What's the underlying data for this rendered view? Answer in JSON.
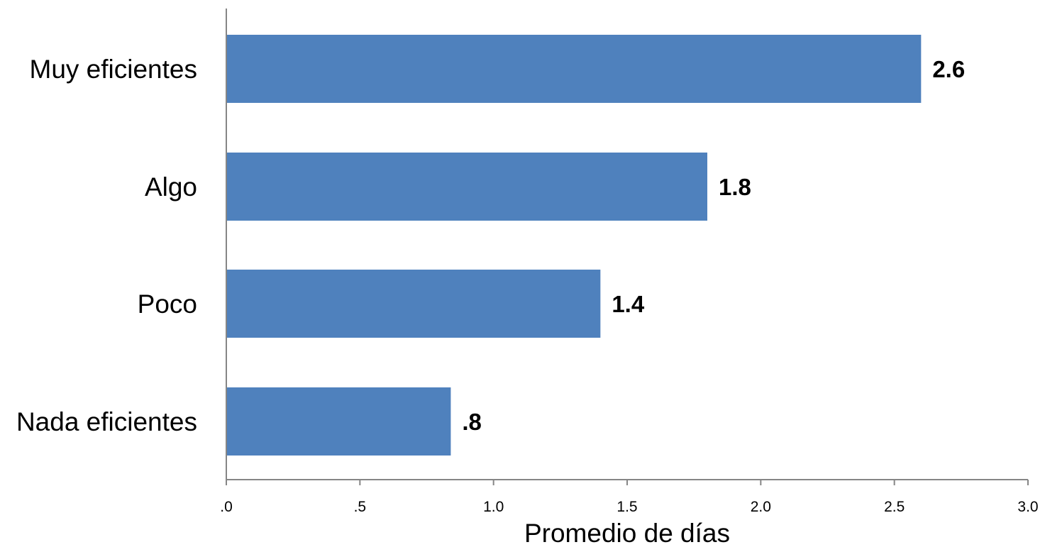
{
  "chart_data": {
    "type": "bar",
    "orientation": "horizontal",
    "title": "",
    "xlabel": "Promedio de días",
    "ylabel": "",
    "categories": [
      "Muy eficientes",
      "Algo",
      "Poco",
      "Nada eficientes"
    ],
    "values": [
      2.6,
      1.8,
      1.4,
      0.84
    ],
    "value_labels": [
      "2.6",
      "1.8",
      "1.4",
      ".8"
    ],
    "xlim": [
      0,
      3
    ],
    "x_ticks": [
      0,
      0.5,
      1,
      1.5,
      2,
      2.5,
      3
    ],
    "x_tick_labels": [
      ".0",
      ".5",
      "1.0",
      "1.5",
      "2.0",
      "2.5",
      "3.0"
    ],
    "grid": false,
    "legend": "none",
    "bar_color": "#4f81bd",
    "axis_color": "#868686"
  }
}
